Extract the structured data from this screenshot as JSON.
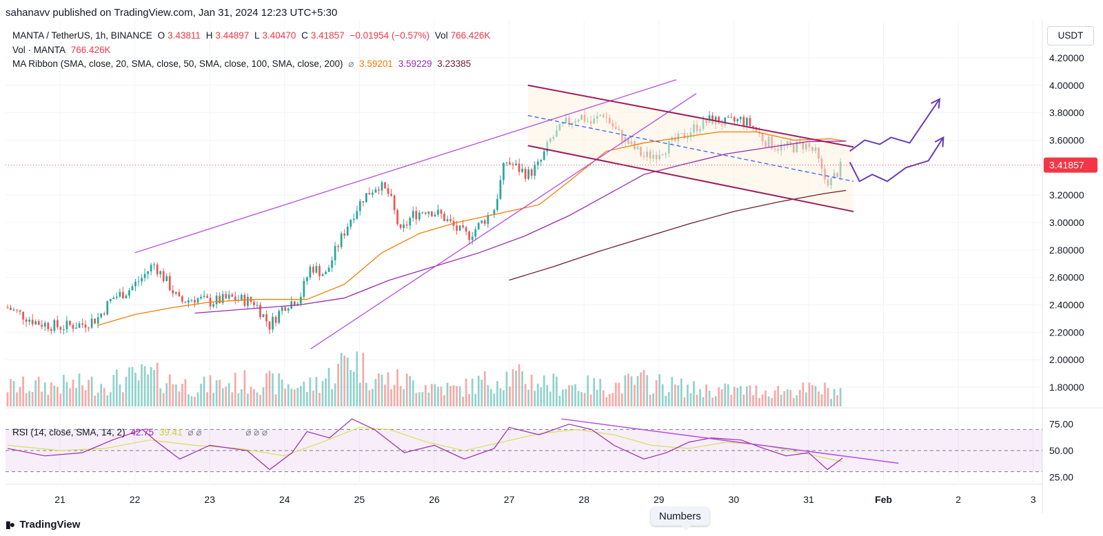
{
  "header": {
    "published": "sahanavv published on TradingView.com, Jan 31, 2024 12:23 UTC+5:30"
  },
  "legend": {
    "symbol": "MANTA / TetherUS, 1h, BINANCE",
    "open_label": "O",
    "open": "3.43811",
    "high_label": "H",
    "high": "3.44897",
    "low_label": "L",
    "low": "3.40470",
    "close_label": "C",
    "close": "3.41857",
    "change": "−0.01954 (−0.57%)",
    "vol_label": "Vol",
    "vol": "766.426K",
    "vol_line_label": "Vol · MANTA",
    "vol_line_value": "766.426K",
    "ma_label": "MA Ribbon (SMA, close, 20, SMA, close, 50, SMA, close, 100, SMA, close, 200)",
    "ma_icon": "⌀",
    "ma_v1": "3.59201",
    "ma_v2": "3.59229",
    "ma_v3": "3.23385",
    "rsi_label": "RSI (14, close, SMA, 14, 2)",
    "rsi_v1": "42.75",
    "rsi_v2": "39.41",
    "rsi_icons": "⌀ ⌀",
    "rsi_icons2": "⌀ ⌀ ⌀"
  },
  "price_axis": {
    "currency": "USDT",
    "current_price_tag": "3.41857"
  },
  "footer": {
    "brand": "TradingView",
    "logo_icon": "tradingview-logo-icon"
  },
  "tooltip": {
    "text": "Numbers"
  },
  "colors": {
    "up": "#26a69a",
    "down": "#ef5350",
    "ma20": "#f57c00",
    "ma50": "#9c27b0",
    "ma200": "#6d1b2b",
    "rsi": "#9c27b0",
    "rsi_ma": "#d4e157",
    "channel": "#9c1b5b",
    "trendline": "#b44ce0",
    "midline": "#2962ff"
  },
  "chart_data": {
    "type": "candlestick",
    "title": "MANTA / TetherUS, 1h, BINANCE",
    "x_ticks": [
      "21",
      "22",
      "23",
      "24",
      "25",
      "26",
      "27",
      "28",
      "29",
      "30",
      "31",
      "Feb",
      "2",
      "3"
    ],
    "x_tick_values": [
      21,
      22,
      23,
      24,
      25,
      26,
      27,
      28,
      29,
      30,
      31,
      32,
      33,
      34
    ],
    "xlim": [
      20.3,
      34.2
    ],
    "price_ticks": [
      "4.20000",
      "4.00000",
      "3.80000",
      "3.60000",
      "3.40000",
      "3.20000",
      "3.00000",
      "2.80000",
      "2.60000",
      "2.40000",
      "2.20000",
      "2.00000",
      "1.80000"
    ],
    "price_tick_values": [
      4.2,
      4.0,
      3.8,
      3.6,
      3.4,
      3.2,
      3.0,
      2.8,
      2.6,
      2.4,
      2.2,
      2.0,
      1.8
    ],
    "ylim": [
      1.72,
      4.32
    ],
    "current_price": 3.41857,
    "price_path": [
      [
        20.3,
        2.38
      ],
      [
        20.7,
        2.27
      ],
      [
        21.0,
        2.24
      ],
      [
        21.3,
        2.26
      ],
      [
        21.5,
        2.3
      ],
      [
        21.7,
        2.45
      ],
      [
        21.9,
        2.5
      ],
      [
        22.1,
        2.6
      ],
      [
        22.25,
        2.7
      ],
      [
        22.45,
        2.55
      ],
      [
        22.6,
        2.42
      ],
      [
        22.8,
        2.45
      ],
      [
        23.0,
        2.42
      ],
      [
        23.3,
        2.45
      ],
      [
        23.6,
        2.42
      ],
      [
        23.8,
        2.25
      ],
      [
        24.0,
        2.4
      ],
      [
        24.2,
        2.45
      ],
      [
        24.35,
        2.68
      ],
      [
        24.55,
        2.62
      ],
      [
        24.7,
        2.82
      ],
      [
        24.9,
        3.05
      ],
      [
        25.05,
        3.18
      ],
      [
        25.25,
        3.28
      ],
      [
        25.4,
        3.2
      ],
      [
        25.55,
        2.92
      ],
      [
        25.7,
        3.05
      ],
      [
        25.9,
        3.1
      ],
      [
        26.1,
        3.05
      ],
      [
        26.3,
        2.95
      ],
      [
        26.45,
        2.9
      ],
      [
        26.6,
        2.98
      ],
      [
        26.8,
        3.1
      ],
      [
        26.95,
        3.45
      ],
      [
        27.1,
        3.4
      ],
      [
        27.25,
        3.35
      ],
      [
        27.4,
        3.42
      ],
      [
        27.55,
        3.6
      ],
      [
        27.75,
        3.72
      ],
      [
        27.95,
        3.78
      ],
      [
        28.1,
        3.72
      ],
      [
        28.25,
        3.8
      ],
      [
        28.45,
        3.65
      ],
      [
        28.65,
        3.55
      ],
      [
        28.8,
        3.48
      ],
      [
        28.95,
        3.5
      ],
      [
        29.1,
        3.55
      ],
      [
        29.3,
        3.62
      ],
      [
        29.5,
        3.7
      ],
      [
        29.7,
        3.75
      ],
      [
        29.9,
        3.72
      ],
      [
        30.1,
        3.75
      ],
      [
        30.25,
        3.7
      ],
      [
        30.4,
        3.6
      ],
      [
        30.6,
        3.55
      ],
      [
        30.8,
        3.55
      ],
      [
        30.95,
        3.57
      ],
      [
        31.1,
        3.5
      ],
      [
        31.2,
        3.32
      ],
      [
        31.3,
        3.3
      ],
      [
        31.45,
        3.42
      ]
    ],
    "ma20_path": [
      [
        21.5,
        2.25
      ],
      [
        22.0,
        2.33
      ],
      [
        22.5,
        2.38
      ],
      [
        23.0,
        2.42
      ],
      [
        23.6,
        2.44
      ],
      [
        24.3,
        2.44
      ],
      [
        24.8,
        2.55
      ],
      [
        25.3,
        2.78
      ],
      [
        25.8,
        2.92
      ],
      [
        26.3,
        3.0
      ],
      [
        26.9,
        3.07
      ],
      [
        27.4,
        3.13
      ],
      [
        27.8,
        3.3
      ],
      [
        28.3,
        3.52
      ],
      [
        28.8,
        3.58
      ],
      [
        29.3,
        3.62
      ],
      [
        29.8,
        3.66
      ],
      [
        30.3,
        3.66
      ],
      [
        30.8,
        3.6
      ],
      [
        31.3,
        3.61
      ],
      [
        31.5,
        3.59201
      ]
    ],
    "ma50_path": [
      [
        22.8,
        2.34
      ],
      [
        23.5,
        2.37
      ],
      [
        24.2,
        2.4
      ],
      [
        24.8,
        2.45
      ],
      [
        25.4,
        2.58
      ],
      [
        26.0,
        2.68
      ],
      [
        26.6,
        2.78
      ],
      [
        27.2,
        2.9
      ],
      [
        27.8,
        3.05
      ],
      [
        28.3,
        3.2
      ],
      [
        28.8,
        3.35
      ],
      [
        29.3,
        3.42
      ],
      [
        29.9,
        3.5
      ],
      [
        30.5,
        3.55
      ],
      [
        31.0,
        3.59
      ],
      [
        31.5,
        3.59229
      ]
    ],
    "ma200_path": [
      [
        27.0,
        2.58
      ],
      [
        27.6,
        2.68
      ],
      [
        28.2,
        2.79
      ],
      [
        28.8,
        2.89
      ],
      [
        29.4,
        2.99
      ],
      [
        30.0,
        3.08
      ],
      [
        30.6,
        3.15
      ],
      [
        31.2,
        3.21
      ],
      [
        31.5,
        3.23385
      ]
    ],
    "trendlines": [
      {
        "name": "upper-rising-trendline",
        "from": [
          22.0,
          2.78
        ],
        "to": [
          29.23,
          4.04
        ]
      },
      {
        "name": "lower-rising-trendline",
        "from": [
          24.35,
          2.08
        ],
        "to": [
          29.5,
          3.94
        ]
      },
      {
        "name": "channel-upper",
        "from": [
          27.25,
          4.0
        ],
        "to": [
          31.6,
          3.55
        ]
      },
      {
        "name": "channel-lower",
        "from": [
          27.25,
          3.56
        ],
        "to": [
          31.6,
          3.08
        ]
      },
      {
        "name": "channel-midline",
        "from": [
          27.25,
          3.78
        ],
        "to": [
          31.6,
          3.3
        ]
      }
    ],
    "projection_paths": [
      [
        [
          31.55,
          3.52
        ],
        [
          31.75,
          3.6
        ],
        [
          31.95,
          3.57
        ],
        [
          32.1,
          3.62
        ],
        [
          32.35,
          3.58
        ],
        [
          32.6,
          3.78
        ],
        [
          32.75,
          3.9
        ]
      ],
      [
        [
          31.55,
          3.44
        ],
        [
          31.68,
          3.3
        ],
        [
          31.85,
          3.35
        ],
        [
          32.05,
          3.3
        ],
        [
          32.3,
          3.4
        ],
        [
          32.6,
          3.45
        ],
        [
          32.8,
          3.62
        ]
      ]
    ],
    "volume": {
      "label": "Vol · MANTA",
      "last": 766.426,
      "unit": "K",
      "profile": [
        [
          20.3,
          0.35
        ],
        [
          21.5,
          0.4
        ],
        [
          22.2,
          0.55
        ],
        [
          22.8,
          0.35
        ],
        [
          23.6,
          0.45
        ],
        [
          24.3,
          0.35
        ],
        [
          24.7,
          0.6
        ],
        [
          24.85,
          0.95
        ],
        [
          25.2,
          0.5
        ],
        [
          25.6,
          0.45
        ],
        [
          26.3,
          0.3
        ],
        [
          26.95,
          0.55
        ],
        [
          27.6,
          0.4
        ],
        [
          28.3,
          0.35
        ],
        [
          28.8,
          0.45
        ],
        [
          29.5,
          0.3
        ],
        [
          30.3,
          0.28
        ],
        [
          31.2,
          0.3
        ],
        [
          31.5,
          0.25
        ]
      ]
    },
    "rsi": {
      "label": "RSI (14, close, SMA, 14, 2)",
      "ticks": [
        "75.00",
        "50.00",
        "25.00"
      ],
      "tick_values": [
        75,
        50,
        25
      ],
      "band": [
        30,
        70
      ],
      "ylim": [
        20,
        82
      ],
      "value": 42.75,
      "ma_value": 39.41,
      "path": [
        [
          20.3,
          52
        ],
        [
          20.8,
          45
        ],
        [
          21.3,
          48
        ],
        [
          21.7,
          60
        ],
        [
          22.1,
          70
        ],
        [
          22.3,
          58
        ],
        [
          22.6,
          42
        ],
        [
          23.0,
          55
        ],
        [
          23.5,
          50
        ],
        [
          23.8,
          32
        ],
        [
          24.1,
          48
        ],
        [
          24.3,
          68
        ],
        [
          24.6,
          62
        ],
        [
          24.9,
          80
        ],
        [
          25.2,
          70
        ],
        [
          25.6,
          48
        ],
        [
          26.0,
          55
        ],
        [
          26.4,
          42
        ],
        [
          26.8,
          52
        ],
        [
          27.0,
          72
        ],
        [
          27.4,
          65
        ],
        [
          27.8,
          75
        ],
        [
          28.1,
          70
        ],
        [
          28.4,
          55
        ],
        [
          28.8,
          42
        ],
        [
          29.1,
          48
        ],
        [
          29.4,
          58
        ],
        [
          29.7,
          62
        ],
        [
          30.1,
          60
        ],
        [
          30.4,
          52
        ],
        [
          30.7,
          45
        ],
        [
          31.0,
          48
        ],
        [
          31.25,
          32
        ],
        [
          31.45,
          42.75
        ]
      ],
      "ma_path": [
        [
          20.3,
          55
        ],
        [
          21.0,
          50
        ],
        [
          21.6,
          52
        ],
        [
          22.2,
          60
        ],
        [
          22.8,
          55
        ],
        [
          23.4,
          52
        ],
        [
          24.0,
          45
        ],
        [
          24.5,
          58
        ],
        [
          25.0,
          72
        ],
        [
          25.4,
          70
        ],
        [
          25.9,
          58
        ],
        [
          26.4,
          50
        ],
        [
          26.9,
          58
        ],
        [
          27.4,
          66
        ],
        [
          27.9,
          70
        ],
        [
          28.4,
          65
        ],
        [
          28.9,
          55
        ],
        [
          29.4,
          52
        ],
        [
          29.9,
          58
        ],
        [
          30.4,
          55
        ],
        [
          30.9,
          48
        ],
        [
          31.45,
          39.41
        ]
      ],
      "trendline": {
        "from": [
          27.7,
          80
        ],
        "to": [
          32.2,
          38
        ]
      }
    }
  }
}
